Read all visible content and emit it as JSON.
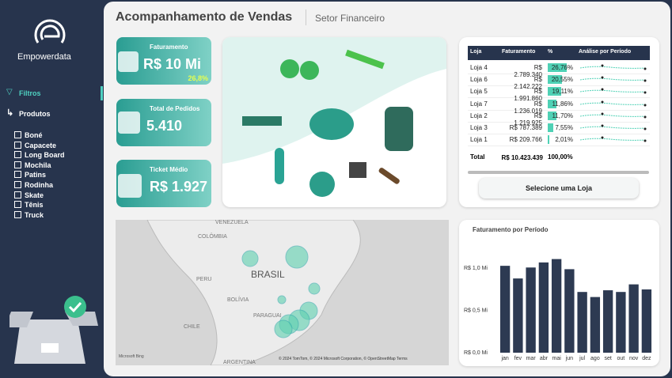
{
  "sidebar": {
    "brand": "Empowerdata",
    "filters_label": "Filtros",
    "products_label": "Produtos",
    "products": [
      "Boné",
      "Capacete",
      "Long Board",
      "Mochila",
      "Patins",
      "Rodinha",
      "Skate",
      "Tênis",
      "Truck"
    ]
  },
  "header": {
    "title": "Acompanhamento de Vendas",
    "subtitle": "Setor Financeiro"
  },
  "kpis": [
    {
      "label": "Faturamento",
      "value": "R$ 10 Mi",
      "change": "26,8%"
    },
    {
      "label": "Total de Pedidos",
      "value": "5.410"
    },
    {
      "label": "Ticket Médio",
      "value": "R$ 1.927"
    }
  ],
  "table": {
    "columns": [
      "Loja",
      "Faturamento",
      "%",
      "Análise por Período"
    ],
    "rows": [
      [
        "Loja 4",
        "R$ 2.789.340",
        "26,76%"
      ],
      [
        "Loja 6",
        "R$ 2.142.222",
        "20,55%"
      ],
      [
        "Loja 5",
        "R$ 1.991.860",
        "19,11%"
      ],
      [
        "Loja 7",
        "R$ 1.236.019",
        "11,86%"
      ],
      [
        "Loja 2",
        "R$ 1.219.925",
        "11,70%"
      ],
      [
        "Loja 3",
        "R$ 787.389",
        "7,55%"
      ],
      [
        "Loja 1",
        "R$ 209.766",
        "2,01%"
      ]
    ],
    "total": [
      "Total",
      "R$ 10.423.439",
      "100,00%"
    ]
  },
  "button": "Selecione uma Loja",
  "map": {
    "labels": [
      "VENEZUELA",
      "COLÔMBIA",
      "PERU",
      "BRASIL",
      "BOLÍVIA",
      "PARAGUAI",
      "CHILE",
      "ARGENTINA"
    ],
    "logo": "Microsoft Bing",
    "attribution": "© 2024 TomTom, © 2024 Microsoft Corporation, © OpenStreetMap  Terms"
  },
  "chart_data": {
    "type": "bar",
    "title": "Faturamento por Período",
    "categories": [
      "jan",
      "fev",
      "mar",
      "abr",
      "mai",
      "jun",
      "jul",
      "ago",
      "set",
      "out",
      "nov",
      "dez"
    ],
    "values": [
      1.03,
      0.88,
      1.01,
      1.07,
      1.11,
      0.99,
      0.72,
      0.66,
      0.74,
      0.72,
      0.81,
      0.75
    ],
    "color": "#2d3a52",
    "ylim": [
      0,
      1.2
    ],
    "yticks": [
      {
        "value": 0,
        "label": "R$ 0,0 Mi"
      },
      {
        "value": 0.5,
        "label": "R$ 0,5 Mi"
      },
      {
        "value": 1,
        "label": "R$ 1,0 Mi"
      }
    ],
    "grid": false
  }
}
